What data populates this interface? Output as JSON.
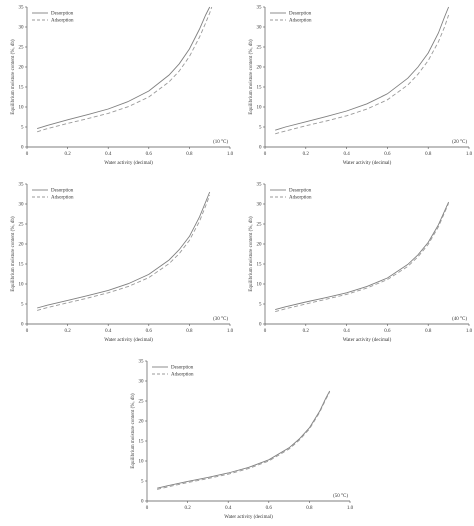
{
  "chart_data": [
    {
      "type": "line",
      "annotation": "(10 °C)",
      "xlabel": "Water activity (decimal)",
      "ylabel": "Equilibrium moisture content (%, db)",
      "xlim": [
        0,
        1.0
      ],
      "ylim": [
        0,
        35
      ],
      "xticks": [
        "0",
        "0.2",
        "0.4",
        "0.6",
        "0.8",
        "1.0"
      ],
      "yticks": [
        "0",
        "5",
        "10",
        "15",
        "20",
        "25",
        "30",
        "35"
      ],
      "legend_position": "top-left",
      "series": [
        {
          "name": "Desorption",
          "style": "solid",
          "x": [
            0.05,
            0.1,
            0.2,
            0.3,
            0.4,
            0.5,
            0.6,
            0.7,
            0.75,
            0.8,
            0.85,
            0.88,
            0.9
          ],
          "y": [
            4.6,
            5.4,
            6.8,
            8.1,
            9.5,
            11.4,
            14.0,
            18.0,
            20.8,
            24.5,
            29.5,
            33.0,
            35.0
          ]
        },
        {
          "name": "Adsorption",
          "style": "dashed",
          "x": [
            0.05,
            0.1,
            0.2,
            0.3,
            0.4,
            0.5,
            0.6,
            0.7,
            0.75,
            0.8,
            0.85,
            0.88,
            0.9,
            0.91
          ],
          "y": [
            3.8,
            4.6,
            5.9,
            7.1,
            8.4,
            10.1,
            12.5,
            16.3,
            19.0,
            22.6,
            27.5,
            31.0,
            33.5,
            35.0
          ]
        }
      ]
    },
    {
      "type": "line",
      "annotation": "(20 °C)",
      "xlabel": "Water activity (decimal)",
      "ylabel": "Equilibrium moisture content (%, db)",
      "xlim": [
        0,
        1.0
      ],
      "ylim": [
        0,
        35
      ],
      "xticks": [
        "0",
        "0.2",
        "0.4",
        "0.6",
        "0.8",
        "1.0"
      ],
      "yticks": [
        "0",
        "5",
        "10",
        "15",
        "20",
        "25",
        "30",
        "35"
      ],
      "legend_position": "top-left",
      "series": [
        {
          "name": "Desorption",
          "style": "solid",
          "x": [
            0.05,
            0.1,
            0.2,
            0.3,
            0.4,
            0.5,
            0.6,
            0.7,
            0.75,
            0.8,
            0.85,
            0.88,
            0.9
          ],
          "y": [
            4.2,
            5.0,
            6.3,
            7.6,
            9.0,
            10.8,
            13.3,
            17.2,
            20.0,
            23.5,
            28.5,
            32.5,
            35.0
          ]
        },
        {
          "name": "Adsorption",
          "style": "dashed",
          "x": [
            0.05,
            0.1,
            0.2,
            0.3,
            0.4,
            0.5,
            0.6,
            0.7,
            0.75,
            0.8,
            0.85,
            0.88,
            0.9
          ],
          "y": [
            3.3,
            4.0,
            5.3,
            6.5,
            7.8,
            9.5,
            11.8,
            15.5,
            18.2,
            21.6,
            26.3,
            30.0,
            33.0
          ]
        }
      ]
    },
    {
      "type": "line",
      "annotation": "(30 °C)",
      "xlabel": "Water activity (decimal)",
      "ylabel": "Equilibrium moisture content (%, db)",
      "xlim": [
        0,
        1.0
      ],
      "ylim": [
        0,
        35
      ],
      "xticks": [
        "0",
        "0.2",
        "0.4",
        "0.6",
        "0.8",
        "1.0"
      ],
      "yticks": [
        "0",
        "5",
        "10",
        "15",
        "20",
        "25",
        "30",
        "35"
      ],
      "legend_position": "top-left",
      "series": [
        {
          "name": "Desorption",
          "style": "solid",
          "x": [
            0.05,
            0.1,
            0.2,
            0.3,
            0.4,
            0.5,
            0.6,
            0.7,
            0.75,
            0.8,
            0.85,
            0.88,
            0.9
          ],
          "y": [
            4.0,
            4.7,
            5.9,
            7.1,
            8.4,
            10.1,
            12.4,
            16.0,
            18.6,
            21.9,
            26.8,
            30.5,
            33.0
          ]
        },
        {
          "name": "Adsorption",
          "style": "dashed",
          "x": [
            0.05,
            0.1,
            0.2,
            0.3,
            0.4,
            0.5,
            0.6,
            0.7,
            0.75,
            0.8,
            0.85,
            0.88,
            0.9
          ],
          "y": [
            3.4,
            4.1,
            5.3,
            6.5,
            7.8,
            9.4,
            11.6,
            15.1,
            17.6,
            20.9,
            25.7,
            29.5,
            32.2
          ]
        }
      ]
    },
    {
      "type": "line",
      "annotation": "(40 °C)",
      "xlabel": "Water activity (decimal)",
      "ylabel": "Equilibrium moisture content (%, db)",
      "xlim": [
        0,
        1.0
      ],
      "ylim": [
        0,
        35
      ],
      "xticks": [
        "0",
        "0.2",
        "0.4",
        "0.6",
        "0.8",
        "1.0"
      ],
      "yticks": [
        "0",
        "5",
        "10",
        "15",
        "20",
        "25",
        "30",
        "35"
      ],
      "legend_position": "top-left",
      "series": [
        {
          "name": "Desorption",
          "style": "solid",
          "x": [
            0.05,
            0.1,
            0.2,
            0.3,
            0.4,
            0.5,
            0.6,
            0.7,
            0.75,
            0.8,
            0.85,
            0.88,
            0.9
          ],
          "y": [
            3.6,
            4.3,
            5.5,
            6.6,
            7.8,
            9.4,
            11.5,
            14.9,
            17.3,
            20.4,
            24.8,
            28.2,
            30.5
          ]
        },
        {
          "name": "Adsorption",
          "style": "dashed",
          "x": [
            0.05,
            0.1,
            0.2,
            0.3,
            0.4,
            0.5,
            0.6,
            0.7,
            0.75,
            0.8,
            0.85,
            0.88,
            0.9
          ],
          "y": [
            3.1,
            3.8,
            5.0,
            6.2,
            7.4,
            9.0,
            11.1,
            14.4,
            16.8,
            19.9,
            24.3,
            27.8,
            30.2
          ]
        }
      ]
    },
    {
      "type": "line",
      "annotation": "(50 °C)",
      "xlabel": "Water activity (decimal)",
      "ylabel": "Equilibrium moisture content (%, db)",
      "xlim": [
        0,
        1.0
      ],
      "ylim": [
        0,
        35
      ],
      "xticks": [
        "0",
        "0.2",
        "0.4",
        "0.6",
        "0.8",
        "1.0"
      ],
      "yticks": [
        "0",
        "5",
        "10",
        "15",
        "20",
        "25",
        "30",
        "35"
      ],
      "legend_position": "top-left",
      "series": [
        {
          "name": "Desorption",
          "style": "solid",
          "x": [
            0.05,
            0.1,
            0.2,
            0.3,
            0.4,
            0.5,
            0.6,
            0.7,
            0.75,
            0.8,
            0.85,
            0.88,
            0.9
          ],
          "y": [
            3.2,
            3.8,
            4.9,
            5.9,
            7.0,
            8.4,
            10.3,
            13.3,
            15.5,
            18.3,
            22.4,
            25.6,
            27.5
          ]
        },
        {
          "name": "Adsorption",
          "style": "dashed",
          "x": [
            0.05,
            0.1,
            0.2,
            0.3,
            0.4,
            0.5,
            0.6,
            0.7,
            0.75,
            0.8,
            0.85,
            0.88,
            0.9
          ],
          "y": [
            2.9,
            3.5,
            4.6,
            5.6,
            6.7,
            8.1,
            10.0,
            13.0,
            15.2,
            18.0,
            22.1,
            25.3,
            27.3
          ]
        }
      ]
    }
  ],
  "colors": {
    "desorption": "#808080",
    "adsorption": "#9a9a9a",
    "axis": "#555555"
  }
}
